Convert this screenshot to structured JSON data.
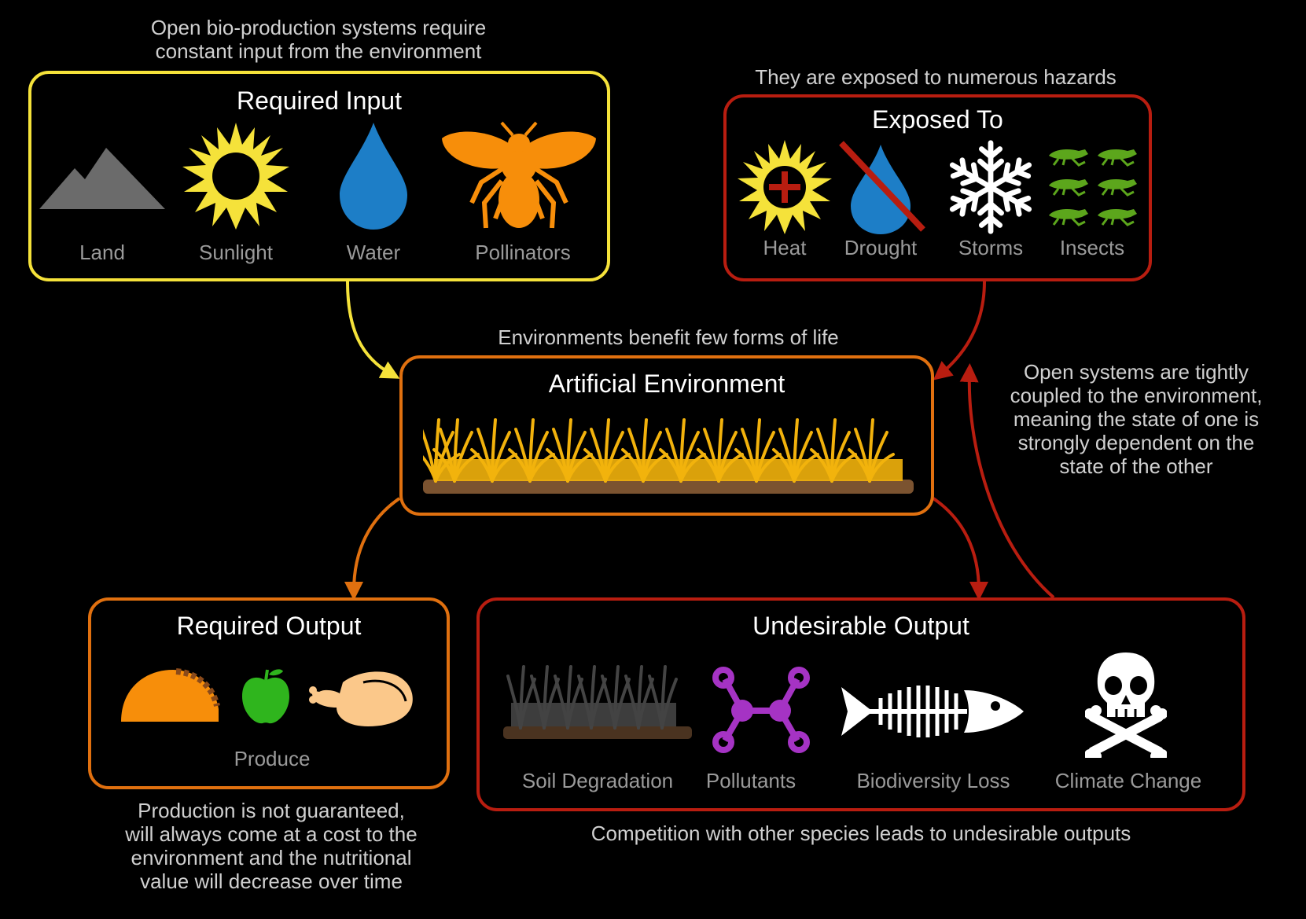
{
  "notes": {
    "top_left": "Open bio-production systems require\nconstant input from the environment",
    "top_right": "They are exposed to numerous hazards",
    "middle": "Environments benefit few forms of life",
    "right_side": "Open systems are tightly\ncoupled to the environment,\nmeaning the state of one is\nstrongly dependent on the\nstate of the other",
    "bottom_left": "Production is not guaranteed,\nwill always come at a cost to the\nenvironment and the nutritional\nvalue will decrease over time",
    "bottom_right": "Competition with other species leads to undesirable outputs"
  },
  "required_input": {
    "title": "Required Input",
    "items": [
      {
        "label": "Land",
        "icon": "mountain-icon"
      },
      {
        "label": "Sunlight",
        "icon": "sun-icon"
      },
      {
        "label": "Water",
        "icon": "water-drop-icon"
      },
      {
        "label": "Pollinators",
        "icon": "bee-icon"
      }
    ]
  },
  "exposed_to": {
    "title": "Exposed To",
    "items": [
      {
        "label": "Heat",
        "icon": "hot-sun-icon"
      },
      {
        "label": "Drought",
        "icon": "no-water-icon"
      },
      {
        "label": "Storms",
        "icon": "snowflake-icon"
      },
      {
        "label": "Insects",
        "icon": "grasshopper-icon"
      }
    ]
  },
  "artificial_environment": {
    "title": "Artificial Environment",
    "icon": "crop-field-icon"
  },
  "required_output": {
    "title": "Required Output",
    "label": "Produce",
    "icons": [
      "taco-icon",
      "apple-icon",
      "chicken-icon"
    ]
  },
  "undesirable_output": {
    "title": "Undesirable Output",
    "items": [
      {
        "label": "Soil Degradation",
        "icon": "dead-grass-icon"
      },
      {
        "label": "Pollutants",
        "icon": "molecule-icon"
      },
      {
        "label": "Biodiversity Loss",
        "icon": "fish-skeleton-icon"
      },
      {
        "label": "Climate Change",
        "icon": "skull-crossbones-icon"
      }
    ]
  },
  "colors": {
    "input": "#f5e23a",
    "hazard": "#b81d10",
    "environment": "#e0700f",
    "output": "#e0700f",
    "undesirable": "#b81d10",
    "label_gray": "#9a9a9a",
    "note_gray": "#d0d0d0"
  }
}
